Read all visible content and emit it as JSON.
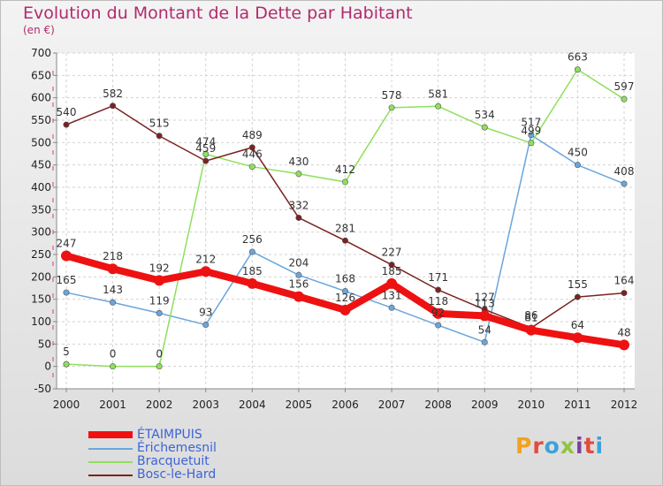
{
  "chart_data": {
    "type": "line",
    "title": "Evolution du Montant de la Dette par Habitant",
    "subtitle": "(en €)",
    "x": [
      "2000",
      "2001",
      "2002",
      "2003",
      "2004",
      "2005",
      "2006",
      "2007",
      "2008",
      "2009",
      "2010",
      "2011",
      "2012"
    ],
    "ylim": [
      -50,
      700
    ],
    "yticks": [
      "-50",
      "0",
      "50",
      "100",
      "150",
      "200",
      "250",
      "300",
      "350",
      "400",
      "450",
      "500",
      "550",
      "600",
      "650",
      "700"
    ],
    "grid": true,
    "legend_position": "bottom-left",
    "series": [
      {
        "name": "ÉTAIMPUIS",
        "color": "#ee1111",
        "values": [
          247,
          218,
          192,
          212,
          185,
          156,
          126,
          185,
          118,
          113,
          81,
          64,
          48
        ]
      },
      {
        "name": "Érichemesnil",
        "color": "#6aa6dc",
        "values": [
          165,
          143,
          119,
          93,
          256,
          204,
          168,
          131,
          92,
          54,
          517,
          450,
          408
        ]
      },
      {
        "name": "Bracquetuit",
        "color": "#8fdf5e",
        "values": [
          5,
          0,
          0,
          474,
          446,
          430,
          412,
          578,
          581,
          534,
          499,
          663,
          597
        ]
      },
      {
        "name": "Bosc-le-Hard",
        "color": "#7a2222",
        "values": [
          540,
          582,
          515,
          459,
          489,
          332,
          281,
          227,
          171,
          127,
          86,
          155,
          164
        ]
      }
    ],
    "data_labels": [
      [
        "247",
        "218",
        "192",
        "212",
        "185",
        "156",
        "126",
        "185",
        "118",
        "113",
        "81",
        "64",
        "48"
      ],
      [
        "165",
        "143",
        "119",
        "93",
        "256",
        "204",
        "168",
        "131",
        "92",
        "54",
        "517",
        "450",
        "408"
      ],
      [
        "5",
        "0",
        "0",
        "474",
        "446",
        "430",
        "412",
        "578",
        "581",
        "534",
        "499",
        "663",
        "597"
      ],
      [
        "540",
        "582",
        "515",
        "459",
        "489",
        "332",
        "281",
        "227",
        "171",
        "127",
        "86",
        "155",
        "164"
      ]
    ]
  },
  "branding": {
    "logo_text": "Proxiti",
    "logo_colors": [
      "#f2a21e",
      "#e04c3c",
      "#3ea1d8",
      "#8fc53f",
      "#7b3fa0",
      "#e04c3c",
      "#3ea1d8"
    ]
  }
}
